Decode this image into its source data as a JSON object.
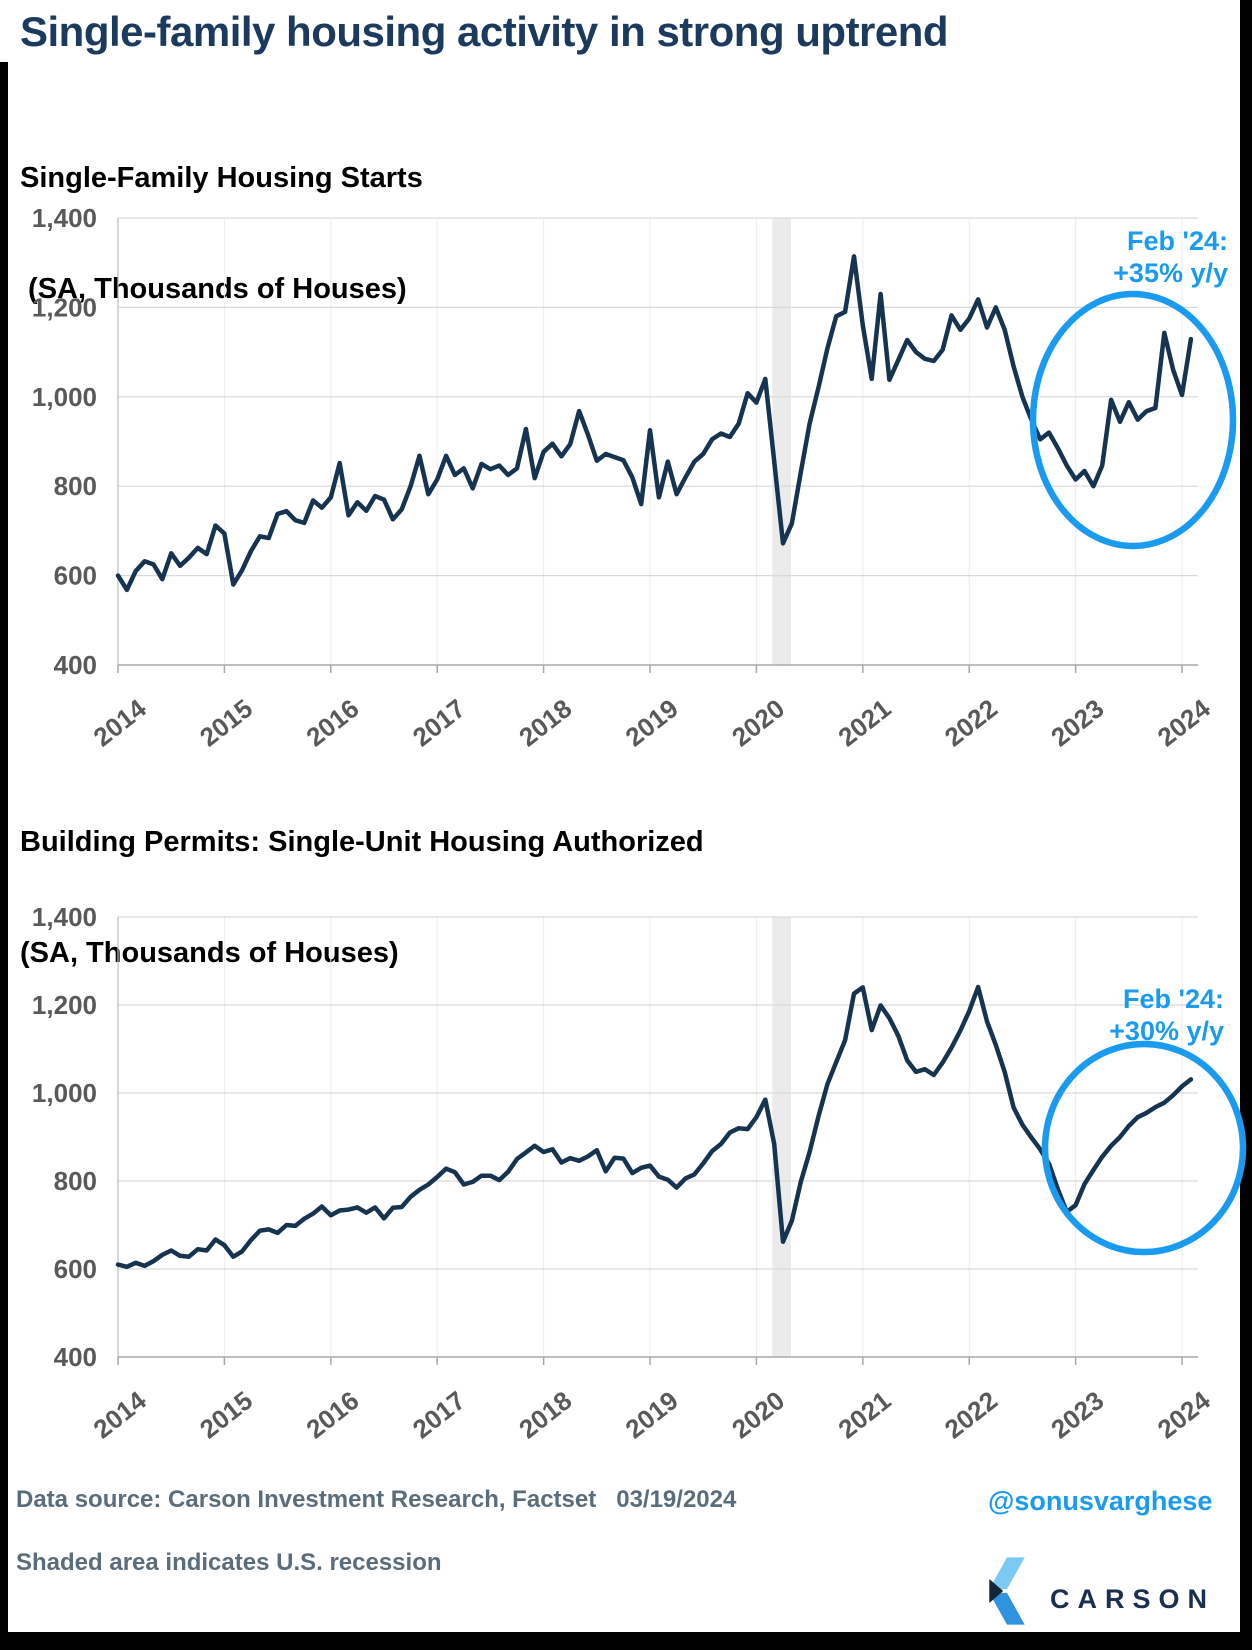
{
  "page": {
    "title": "Single-family housing activity in strong uptrend",
    "footer": {
      "data_source": "Data source: Carson Investment Research, Factset   03/19/2024",
      "recession_note": "Shaded area indicates U.S. recession",
      "handle": "@sonusvarghese",
      "logo_text": "CARSON"
    },
    "colors": {
      "accent_blue": "#1b9bf0",
      "line_navy": "#16334f",
      "title_navy": "#1c3a5e",
      "recession_gray": "#ebebeb",
      "axis_label_gray": "#595959",
      "footer_gray": "#5b6d7b"
    }
  },
  "chart_data": [
    {
      "type": "line",
      "title": "Single-Family Housing Starts",
      "units_label": " (SA, Thousands of Houses)",
      "x_unit": "month",
      "x_start": "2014-01",
      "x_end": "2024-02",
      "x_tick_labels": [
        "2014",
        "2015",
        "2016",
        "2017",
        "2018",
        "2019",
        "2020",
        "2021",
        "2022",
        "2023",
        "2024"
      ],
      "y_ticks": [
        400,
        600,
        800,
        1000,
        1200,
        1400
      ],
      "y_tick_labels": [
        "400",
        "600",
        "800",
        "1,000",
        "1,200",
        "1,400"
      ],
      "ylim": [
        400,
        1400
      ],
      "grid": true,
      "legend": "none",
      "annotation": {
        "line1": "Feb '24:",
        "line2": "+35% y/y"
      },
      "recession_shading": {
        "from": "2020-02",
        "to": "2020-04"
      },
      "line_color": "#16334f",
      "accent_color": "#1b9bf0",
      "series": [
        {
          "name": "Single-Family Housing Starts (SA, Thousands of Houses)",
          "values": [
            600,
            568,
            610,
            632,
            625,
            592,
            650,
            622,
            640,
            662,
            648,
            712,
            694,
            580,
            612,
            655,
            688,
            684,
            738,
            744,
            724,
            718,
            768,
            752,
            775,
            852,
            735,
            764,
            745,
            778,
            770,
            726,
            748,
            800,
            868,
            782,
            815,
            868,
            825,
            840,
            795,
            850,
            838,
            846,
            825,
            840,
            928,
            818,
            877,
            895,
            867,
            894,
            968,
            915,
            857,
            872,
            865,
            858,
            820,
            760,
            925,
            775,
            855,
            782,
            820,
            855,
            872,
            905,
            918,
            910,
            940,
            1008,
            987,
            1040,
            856,
            672,
            717,
            831,
            940,
            1021,
            1108,
            1180,
            1190,
            1314,
            1160,
            1040,
            1230,
            1038,
            1082,
            1127,
            1100,
            1085,
            1080,
            1105,
            1182,
            1150,
            1175,
            1218,
            1155,
            1200,
            1150,
            1068,
            1000,
            949,
            905,
            920,
            885,
            846,
            815,
            834,
            800,
            846,
            993,
            944,
            988,
            949,
            968,
            975,
            1143,
            1060,
            1004,
            1129
          ]
        }
      ]
    },
    {
      "type": "line",
      "title": "Building Permits: Single-Unit Housing Authorized",
      "units_label": "(SA, Thousands of Houses)",
      "x_unit": "month",
      "x_start": "2014-01",
      "x_end": "2024-02",
      "x_tick_labels": [
        "2014",
        "2015",
        "2016",
        "2017",
        "2018",
        "2019",
        "2020",
        "2021",
        "2022",
        "2023",
        "2024"
      ],
      "y_ticks": [
        400,
        600,
        800,
        1000,
        1200,
        1400
      ],
      "y_tick_labels": [
        "400",
        "600",
        "800",
        "1,000",
        "1,200",
        "1,400"
      ],
      "ylim": [
        400,
        1400
      ],
      "grid": true,
      "legend": "none",
      "annotation": {
        "line1": "Feb '24:",
        "line2": "+30% y/y"
      },
      "recession_shading": {
        "from": "2020-02",
        "to": "2020-04"
      },
      "line_color": "#16334f",
      "accent_color": "#1b9bf0",
      "series": [
        {
          "name": "Building Permits: Single-Unit Housing Authorized (SA, Thousands of Houses)",
          "values": [
            610,
            605,
            614,
            607,
            618,
            632,
            642,
            630,
            628,
            645,
            642,
            667,
            654,
            628,
            640,
            666,
            687,
            690,
            682,
            700,
            698,
            714,
            726,
            742,
            722,
            733,
            735,
            740,
            728,
            740,
            715,
            739,
            741,
            764,
            780,
            792,
            809,
            828,
            820,
            792,
            798,
            812,
            812,
            802,
            821,
            850,
            865,
            880,
            866,
            872,
            842,
            852,
            846,
            856,
            870,
            822,
            853,
            851,
            818,
            830,
            835,
            810,
            803,
            785,
            806,
            815,
            840,
            868,
            884,
            910,
            920,
            918,
            945,
            985,
            884,
            662,
            710,
            798,
            866,
            947,
            1020,
            1070,
            1120,
            1226,
            1240,
            1143,
            1199,
            1170,
            1130,
            1074,
            1048,
            1054,
            1041,
            1069,
            1103,
            1142,
            1186,
            1241,
            1163,
            1109,
            1048,
            967,
            928,
            899,
            872,
            839,
            781,
            730,
            745,
            793,
            825,
            855,
            880,
            900,
            925,
            945,
            955,
            968,
            978,
            995,
            1015,
            1031
          ]
        }
      ]
    }
  ]
}
